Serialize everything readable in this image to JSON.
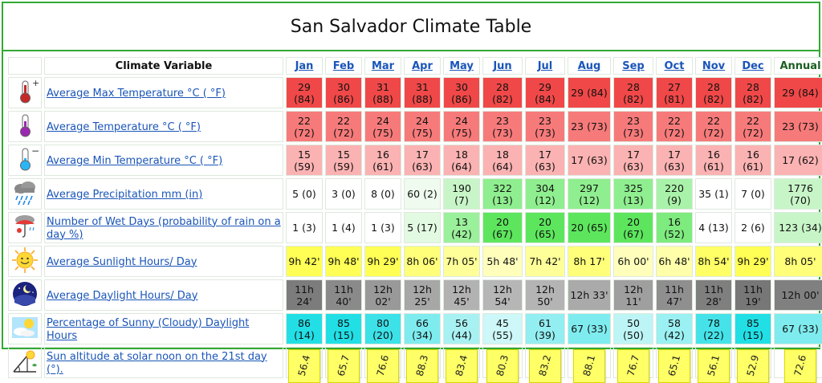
{
  "title": "San Salvador Climate Table",
  "header": {
    "variable_label": "Climate Variable",
    "months": [
      "Jan",
      "Feb",
      "Mar",
      "Apr",
      "May",
      "Jun",
      "Jul",
      "Aug",
      "Sep",
      "Oct",
      "Nov",
      "Dec"
    ],
    "annual_label": "Annual"
  },
  "rows": [
    {
      "label": "Average Max Temperature °C ( °F)",
      "icon": "thermometer-hot-icon",
      "cells": [
        "29 (84)",
        "30 (86)",
        "31 (88)",
        "31 (88)",
        "30 (86)",
        "28 (82)",
        "29 (84)",
        "29 (84)",
        "28 (82)",
        "27 (81)",
        "28 (82)",
        "28 (82)"
      ],
      "colors": [
        "#f04848",
        "#f04848",
        "#f04848",
        "#f04848",
        "#f04848",
        "#f04848",
        "#f04848",
        "#f04848",
        "#f04848",
        "#f04848",
        "#f04848",
        "#f04848"
      ],
      "annual": "29 (84)",
      "annual_color": "#f04848"
    },
    {
      "label": "Average Temperature °C ( °F)",
      "icon": "thermometer-icon",
      "cells": [
        "22 (72)",
        "22 (72)",
        "24 (75)",
        "24 (75)",
        "24 (75)",
        "23 (73)",
        "23 (73)",
        "23 (73)",
        "23 (73)",
        "22 (72)",
        "22 (72)",
        "22 (72)"
      ],
      "colors": [
        "#f77a7a",
        "#f77a7a",
        "#f77a7a",
        "#f77a7a",
        "#f77a7a",
        "#f77a7a",
        "#f77a7a",
        "#f77a7a",
        "#f77a7a",
        "#f77a7a",
        "#f77a7a",
        "#f77a7a"
      ],
      "annual": "23 (73)",
      "annual_color": "#f77a7a"
    },
    {
      "label": "Average Min Temperature °C ( °F)",
      "icon": "thermometer-cold-icon",
      "cells": [
        "15 (59)",
        "15 (59)",
        "16 (61)",
        "17 (63)",
        "18 (64)",
        "18 (64)",
        "17 (63)",
        "17 (63)",
        "17 (63)",
        "17 (63)",
        "16 (61)",
        "16 (61)"
      ],
      "colors": [
        "#fbb2b2",
        "#fbb2b2",
        "#fbb2b2",
        "#fbb2b2",
        "#fbb2b2",
        "#fbb2b2",
        "#fbb2b2",
        "#fbb2b2",
        "#fbb2b2",
        "#fbb2b2",
        "#fbb2b2",
        "#fbb2b2"
      ],
      "annual": "17 (62)",
      "annual_color": "#fbb2b2"
    },
    {
      "label": "Average Precipitation mm (in)",
      "icon": "rain-cloud-icon",
      "cells": [
        "5 (0)",
        "3 (0)",
        "8 (0)",
        "60 (2)",
        "190 (7)",
        "322 (13)",
        "304 (12)",
        "297 (12)",
        "325 (13)",
        "220 (9)",
        "35 (1)",
        "7 (0)"
      ],
      "colors": [
        "#ffffff",
        "#ffffff",
        "#ffffff",
        "#eefbee",
        "#c8f5c8",
        "#8fee8f",
        "#8fee8f",
        "#8fee8f",
        "#8fee8f",
        "#a9f2a9",
        "#ffffff",
        "#ffffff"
      ],
      "annual": "1776 (70)",
      "annual_color": "#c8f5c8"
    },
    {
      "label": "Number of Wet Days (probability of rain on a day %)",
      "icon": "umbrella-icon",
      "cells": [
        "1 (3)",
        "1 (4)",
        "1 (3)",
        "5 (17)",
        "13 (42)",
        "20 (67)",
        "20 (65)",
        "20 (65)",
        "20 (67)",
        "16 (52)",
        "4 (13)",
        "2 (6)"
      ],
      "colors": [
        "#ffffff",
        "#ffffff",
        "#ffffff",
        "#e2fae2",
        "#9bf09b",
        "#5de65d",
        "#5de65d",
        "#5de65d",
        "#5de65d",
        "#7eeb7e",
        "#ffffff",
        "#ffffff"
      ],
      "annual": "123 (34)",
      "annual_color": "#c8f5c8"
    },
    {
      "label": "Average Sunlight Hours/ Day",
      "icon": "sun-icon",
      "cells": [
        "9h 42'",
        "9h 48'",
        "9h 29'",
        "8h 06'",
        "7h 05'",
        "5h 48'",
        "7h 42'",
        "8h 17'",
        "6h 00'",
        "6h 48'",
        "8h 54'",
        "9h 29'"
      ],
      "colors": [
        "#ffff55",
        "#ffff55",
        "#ffff55",
        "#ffff7a",
        "#ffff99",
        "#ffffbb",
        "#ffff99",
        "#ffff7a",
        "#ffffbb",
        "#ffffaa",
        "#ffff66",
        "#ffff55"
      ],
      "annual": "8h 05'",
      "annual_color": "#ffff7a"
    },
    {
      "label": "Average Daylight Hours/ Day",
      "icon": "night-sky-icon",
      "cells": [
        "11h 24'",
        "11h 40'",
        "12h 02'",
        "12h 25'",
        "12h 45'",
        "12h 54'",
        "12h 50'",
        "12h 33'",
        "12h 11'",
        "11h 47'",
        "11h 28'",
        "11h 19'"
      ],
      "colors": [
        "#7c7c7c",
        "#8a8a8a",
        "#999999",
        "#a7a7a7",
        "#b2b2b2",
        "#b6b6b6",
        "#b4b4b4",
        "#aaaaaa",
        "#9f9f9f",
        "#8f8f8f",
        "#7f7f7f",
        "#777777"
      ],
      "annual": "12h 00'",
      "annual_color": "#808080"
    },
    {
      "label": "Percentage of Sunny (Cloudy) Daylight Hours",
      "icon": "sun-cloud-icon",
      "cells": [
        "86 (14)",
        "85 (15)",
        "80 (20)",
        "66 (34)",
        "56 (44)",
        "45 (55)",
        "61 (39)",
        "67 (33)",
        "50 (50)",
        "58 (42)",
        "78 (22)",
        "85 (15)"
      ],
      "colors": [
        "#22dfe6",
        "#22dfe6",
        "#3ce2e8",
        "#7eecef",
        "#a8f1f3",
        "#cdf7f8",
        "#93eef1",
        "#7eecef",
        "#bdf5f6",
        "#9af0f2",
        "#45e3e9",
        "#22dfe6"
      ],
      "annual": "67 (33)",
      "annual_color": "#7eecef"
    },
    {
      "label": "Sun altitude at solar noon on the 21st day (°).",
      "icon": "sun-altitude-icon",
      "cells": [
        "56.4",
        "65.7",
        "76.6",
        "88.3",
        "83.4",
        "80.3",
        "83.2",
        "88.1",
        "76.7",
        "65.1",
        "56.1",
        "52.9"
      ],
      "annual": "72.6"
    }
  ]
}
